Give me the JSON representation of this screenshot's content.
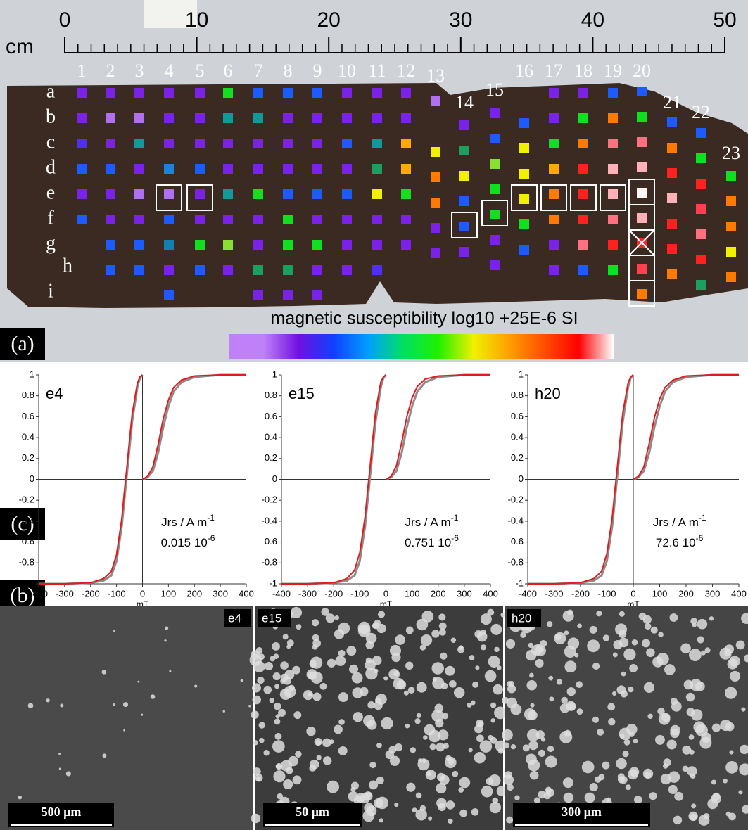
{
  "panel_labels": [
    "(a)",
    "(b)",
    "(c)"
  ],
  "ruler": {
    "unit": "cm",
    "ticks": [
      0,
      10,
      20,
      30,
      40,
      50
    ]
  },
  "row_labels": [
    "a",
    "b",
    "c",
    "d",
    "e",
    "f",
    "g",
    "h",
    "i"
  ],
  "columns": [
    {
      "label": "1",
      "colors": [
        "#7a22e8",
        "#7a22e8",
        "#5030f0",
        "#1e5bff",
        "#7a22e8",
        "#1e5bff"
      ]
    },
    {
      "label": "2",
      "colors": [
        "#7a22e8",
        "#b070f0",
        "#7a22e8",
        "#1e5bff",
        "#7a22e8",
        "#7a22e8",
        "#1e5bff",
        "#1e5bff"
      ]
    },
    {
      "label": "3",
      "colors": [
        "#7a22e8",
        "#b070f0",
        "#119a9a",
        "#7a22e8",
        "#b070f0",
        "#7a22e8",
        "#1e5bff",
        "#1e5bff"
      ]
    },
    {
      "label": "4",
      "colors": [
        "#7a22e8",
        "#7a22e8",
        "#7a22e8",
        "#2080e0",
        "#b070f0",
        "#1e5bff",
        "#1080b0",
        "#7a22e8",
        "#1e5bff"
      ]
    },
    {
      "label": "5",
      "colors": [
        "#7a22e8",
        "#7a22e8",
        "#7a22e8",
        "#1e5bff",
        "#7a22e8",
        "#7a22e8",
        "#10e020",
        "#1e5bff"
      ]
    },
    {
      "label": "6",
      "colors": [
        "#10e020",
        "#119a9a",
        "#7a22e8",
        "#7a22e8",
        "#119a9a",
        "#7a22e8",
        "#88e030",
        "#7a22e8"
      ]
    },
    {
      "label": "7",
      "colors": [
        "#1e5bff",
        "#119a9a",
        "#7a22e8",
        "#7a22e8",
        "#10e020",
        "#7a22e8",
        "#7a22e8",
        "#1aa060",
        "#7a22e8"
      ]
    },
    {
      "label": "8",
      "colors": [
        "#1e5bff",
        "#7a22e8",
        "#7a22e8",
        "#7a22e8",
        "#1e5bff",
        "#10e020",
        "#10e020",
        "#1aa060",
        "#7a22e8"
      ]
    },
    {
      "label": "9",
      "colors": [
        "#1e5bff",
        "#7a22e8",
        "#7a22e8",
        "#7a22e8",
        "#1e5bff",
        "#7a22e8",
        "#10e020",
        "#7a22e8",
        "#7a22e8"
      ]
    },
    {
      "label": "10",
      "colors": [
        "#7a22e8",
        "#7a22e8",
        "#1e5bff",
        "#7a22e8",
        "#1e5bff",
        "#7a22e8",
        "#7a22e8",
        "#7a22e8"
      ]
    },
    {
      "label": "11",
      "colors": [
        "#7a22e8",
        "#7a22e8",
        "#119a9a",
        "#1aa060",
        "#f0f000",
        "#7a22e8",
        "#7a22e8",
        "#5030f0"
      ]
    },
    {
      "label": "12",
      "colors": [
        "#7a22e8",
        "#7a22e8",
        "#ffaa00",
        "#ffaa00",
        "#10e020",
        "#7a22e8",
        "#7a22e8"
      ]
    },
    {
      "label": "13",
      "colors": [
        "#b070f0",
        null,
        "#f0f000",
        "#ff7a00",
        "#ff7a00",
        "#7a22e8",
        "#7a22e8"
      ]
    },
    {
      "label": "14",
      "colors": [
        "#7a22e8",
        "#1aa060",
        "#f0f000",
        "#1e5bff",
        "#1e5bff",
        "#7a22e8"
      ]
    },
    {
      "label": "15",
      "colors": [
        "#7a22e8",
        "#1e5bff",
        "#88e030",
        "#10e020",
        "#10e020",
        "#7a22e8",
        "#7a22e8"
      ]
    },
    {
      "label": "16",
      "colors": [
        "#1e5bff",
        "#f0f000",
        "#f0f000",
        "#f0f000",
        "#10e020",
        "#1e5bff"
      ]
    },
    {
      "label": "17",
      "colors": [
        "#7a22e8",
        "#7a22e8",
        "#10e020",
        "#ffaa00",
        "#ff7a00",
        "#ff7a00",
        "#7a22e8",
        "#7a22e8"
      ]
    },
    {
      "label": "18",
      "colors": [
        "#7a22e8",
        "#10e020",
        "#ff7a00",
        "#ff2020",
        "#ff2020",
        "#ff2020",
        "#ff7080",
        "#1e5bff"
      ]
    },
    {
      "label": "19",
      "colors": [
        "#1e5bff",
        "#ff7a00",
        "#ff7080",
        "#ffb0b8",
        "#ffb0b8",
        "#ff7080",
        "#ff2020",
        "#10e020"
      ]
    },
    {
      "label": "20",
      "colors": [
        "#1e5bff",
        "#10e020",
        "#ff7080",
        "#ffb0b8",
        "#fff5f5",
        "#ffb0b8",
        "#ff2020",
        "#ff4050",
        "#ff7a00"
      ]
    },
    {
      "label": "21",
      "colors": [
        "#1e5bff",
        "#ff7a00",
        "#ff2020",
        "#ffb0b8",
        "#ff2020",
        "#ff2020",
        "#ff7a00"
      ]
    },
    {
      "label": "22",
      "colors": [
        "#1e5bff",
        "#10e020",
        "#ff2020",
        "#ff4050",
        "#ff7080",
        "#ff2020",
        "#1aa060"
      ]
    },
    {
      "label": "23",
      "colors": [
        "#10e020",
        "#ff7a00",
        "#ff7a00",
        "#f0f000",
        "#ff7a00"
      ]
    }
  ],
  "colorbar": {
    "title": "magnetic susceptibility  log10 +25E-6 SI",
    "colors": [
      "#c080f8",
      "#c080f8",
      "#7010e0",
      "#1040ff",
      "#00a0ff",
      "#00e060",
      "#20f000",
      "#f0f000",
      "#ffa000",
      "#ff5000",
      "#ff0000",
      "#ffffff"
    ]
  },
  "chart_data": [
    {
      "type": "line",
      "label": "e4",
      "annotation": {
        "text": "Jrs / A m",
        "sup": "-1"
      },
      "result": {
        "text": "0.015 10",
        "sup": "-6"
      },
      "xlabel": "mT",
      "xlim": [
        -400,
        400
      ],
      "xticks": [
        -400,
        -300,
        -200,
        -100,
        0,
        100,
        200,
        300,
        400
      ],
      "ylim": [
        -1,
        1
      ],
      "yticks": [
        -1,
        -0.8,
        -0.6,
        -0.4,
        -0.2,
        0,
        0.2,
        0.4,
        0.6,
        0.8,
        1
      ],
      "series": [
        {
          "color": "#8c8c8c",
          "x": [
            0,
            20,
            40,
            60,
            80,
            100,
            120,
            150,
            200,
            300,
            400
          ],
          "values": [
            0,
            0.02,
            0.08,
            0.25,
            0.5,
            0.7,
            0.84,
            0.93,
            0.98,
            1,
            1
          ]
        },
        {
          "color": "#8c8c8c",
          "x": [
            0,
            -10,
            -20,
            -40,
            -50,
            -60,
            -70,
            -80,
            -100,
            -120,
            -150,
            -200,
            -300,
            -400
          ],
          "values": [
            1,
            0.97,
            0.88,
            0.55,
            0.3,
            0.05,
            -0.2,
            -0.45,
            -0.78,
            -0.92,
            -0.97,
            -0.99,
            -1,
            -1
          ]
        },
        {
          "color": "#e41a1c",
          "x": [
            0,
            20,
            40,
            60,
            80,
            100,
            120,
            150,
            200,
            300,
            400
          ],
          "values": [
            0,
            0.03,
            0.12,
            0.33,
            0.58,
            0.76,
            0.88,
            0.95,
            0.99,
            1,
            1
          ]
        },
        {
          "color": "#e41a1c",
          "x": [
            0,
            -10,
            -20,
            -40,
            -50,
            -60,
            -70,
            -80,
            -100,
            -120,
            -150,
            -200,
            -300,
            -400
          ],
          "values": [
            1,
            0.98,
            0.92,
            0.62,
            0.38,
            0.12,
            -0.12,
            -0.38,
            -0.72,
            -0.88,
            -0.95,
            -0.99,
            -1,
            -1
          ]
        }
      ]
    },
    {
      "type": "line",
      "label": "e15",
      "annotation": {
        "text": "Jrs / A m",
        "sup": "-1"
      },
      "result": {
        "text": "0.751 10",
        "sup": "-6"
      },
      "xlabel": "mT",
      "xlim": [
        -400,
        400
      ],
      "xticks": [
        -400,
        -300,
        -200,
        -100,
        0,
        100,
        200,
        300,
        400
      ],
      "ylim": [
        -1,
        1
      ],
      "yticks": [
        -1,
        -0.8,
        -0.6,
        -0.4,
        -0.2,
        0,
        0.2,
        0.4,
        0.6,
        0.8,
        1
      ],
      "series": [
        {
          "color": "#8c8c8c",
          "x": [
            0,
            20,
            40,
            60,
            80,
            100,
            120,
            150,
            200,
            300,
            400
          ],
          "values": [
            0,
            0.02,
            0.08,
            0.25,
            0.5,
            0.7,
            0.84,
            0.93,
            0.98,
            1,
            1
          ]
        },
        {
          "color": "#8c8c8c",
          "x": [
            0,
            -10,
            -20,
            -40,
            -50,
            -60,
            -70,
            -80,
            -100,
            -120,
            -150,
            -200,
            -300,
            -400
          ],
          "values": [
            1,
            0.97,
            0.88,
            0.55,
            0.3,
            0.05,
            -0.2,
            -0.45,
            -0.78,
            -0.92,
            -0.97,
            -0.99,
            -1,
            -1
          ]
        },
        {
          "color": "#e41a1c",
          "x": [
            0,
            20,
            40,
            60,
            80,
            100,
            120,
            150,
            200,
            300,
            400
          ],
          "values": [
            0,
            0.03,
            0.13,
            0.35,
            0.6,
            0.78,
            0.89,
            0.96,
            0.99,
            1,
            1
          ]
        },
        {
          "color": "#e41a1c",
          "x": [
            0,
            -10,
            -20,
            -40,
            -50,
            -60,
            -70,
            -80,
            -100,
            -120,
            -150,
            -200,
            -300,
            -400
          ],
          "values": [
            1,
            0.98,
            0.93,
            0.64,
            0.4,
            0.14,
            -0.1,
            -0.36,
            -0.7,
            -0.87,
            -0.95,
            -0.99,
            -1,
            -1
          ]
        }
      ]
    },
    {
      "type": "line",
      "label": "h20",
      "annotation": {
        "text": "Jrs / A m",
        "sup": "-1"
      },
      "result": {
        "text": "72.6 10",
        "sup": "-6"
      },
      "xlabel": "mT",
      "xlim": [
        -400,
        400
      ],
      "xticks": [
        -400,
        -300,
        -200,
        -100,
        0,
        100,
        200,
        300,
        400
      ],
      "ylim": [
        -1,
        1
      ],
      "yticks": [
        -1,
        -0.8,
        -0.6,
        -0.4,
        -0.2,
        0,
        0.2,
        0.4,
        0.6,
        0.8,
        1
      ],
      "series": [
        {
          "color": "#8c8c8c",
          "x": [
            0,
            20,
            40,
            60,
            80,
            100,
            120,
            150,
            200,
            300,
            400
          ],
          "values": [
            0,
            0.02,
            0.08,
            0.25,
            0.5,
            0.7,
            0.84,
            0.93,
            0.98,
            1,
            1
          ]
        },
        {
          "color": "#8c8c8c",
          "x": [
            0,
            -10,
            -20,
            -40,
            -50,
            -60,
            -70,
            -80,
            -100,
            -120,
            -150,
            -200,
            -300,
            -400
          ],
          "values": [
            1,
            0.97,
            0.88,
            0.55,
            0.3,
            0.05,
            -0.2,
            -0.45,
            -0.78,
            -0.92,
            -0.97,
            -0.99,
            -1,
            -1
          ]
        },
        {
          "color": "#e41a1c",
          "x": [
            0,
            20,
            40,
            60,
            80,
            100,
            120,
            150,
            200,
            300,
            400
          ],
          "values": [
            0,
            0.03,
            0.12,
            0.34,
            0.59,
            0.77,
            0.88,
            0.95,
            0.99,
            1,
            1
          ]
        },
        {
          "color": "#e41a1c",
          "x": [
            0,
            -10,
            -20,
            -40,
            -50,
            -60,
            -70,
            -80,
            -100,
            -120,
            -150,
            -200,
            -300,
            -400
          ],
          "values": [
            1,
            0.98,
            0.92,
            0.63,
            0.39,
            0.13,
            -0.11,
            -0.37,
            -0.71,
            -0.88,
            -0.95,
            -0.99,
            -1,
            -1
          ]
        }
      ]
    }
  ],
  "images": [
    {
      "label": "e4",
      "scale_bar": "500 µm"
    },
    {
      "label": "e15",
      "scale_bar": "50 µm"
    },
    {
      "label": "h20",
      "scale_bar": "300 µm"
    }
  ]
}
